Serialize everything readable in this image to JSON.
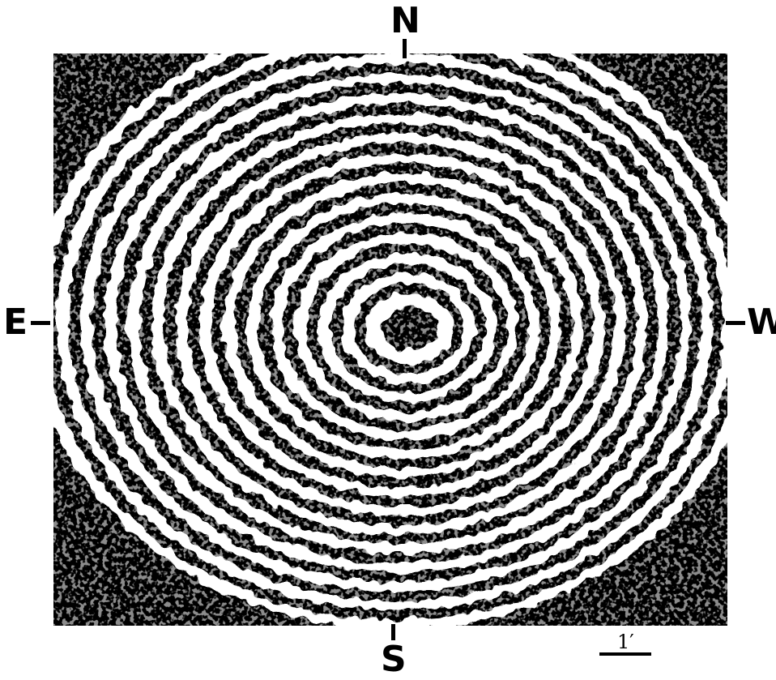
{
  "compass": {
    "north": "N",
    "south": "S",
    "east": "E",
    "west": "W"
  },
  "scale": {
    "label": "1′"
  },
  "colors": {
    "background": "#ffffff",
    "ink": "#000000"
  }
}
